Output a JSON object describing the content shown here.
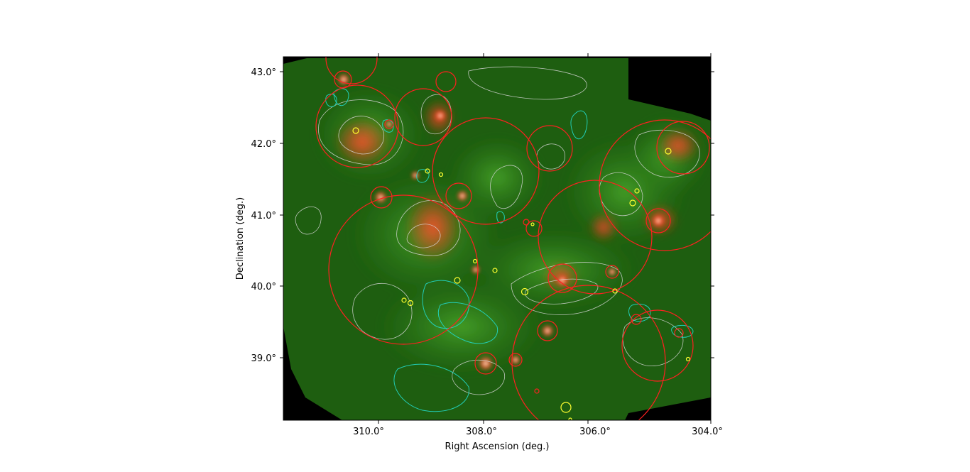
{
  "axes": {
    "xlabel": "Right Ascension (deg.)",
    "ylabel": "Declination (deg.)",
    "x_ticks": [
      "310.0°",
      "308.0°",
      "306.0°",
      "304.0°"
    ],
    "y_ticks": [
      "43.0°",
      "42.0°",
      "41.0°",
      "40.0°",
      "39.0°"
    ]
  },
  "colors": {
    "background": "#000000",
    "diffuse_emission": "#1f6b12",
    "ionized_emission": "#e0301e",
    "contour_white": "#d8d8d8",
    "contour_cyan": "#22d8c8",
    "circle_red": "#ff2020",
    "circle_yellow": "#ffff30"
  }
}
